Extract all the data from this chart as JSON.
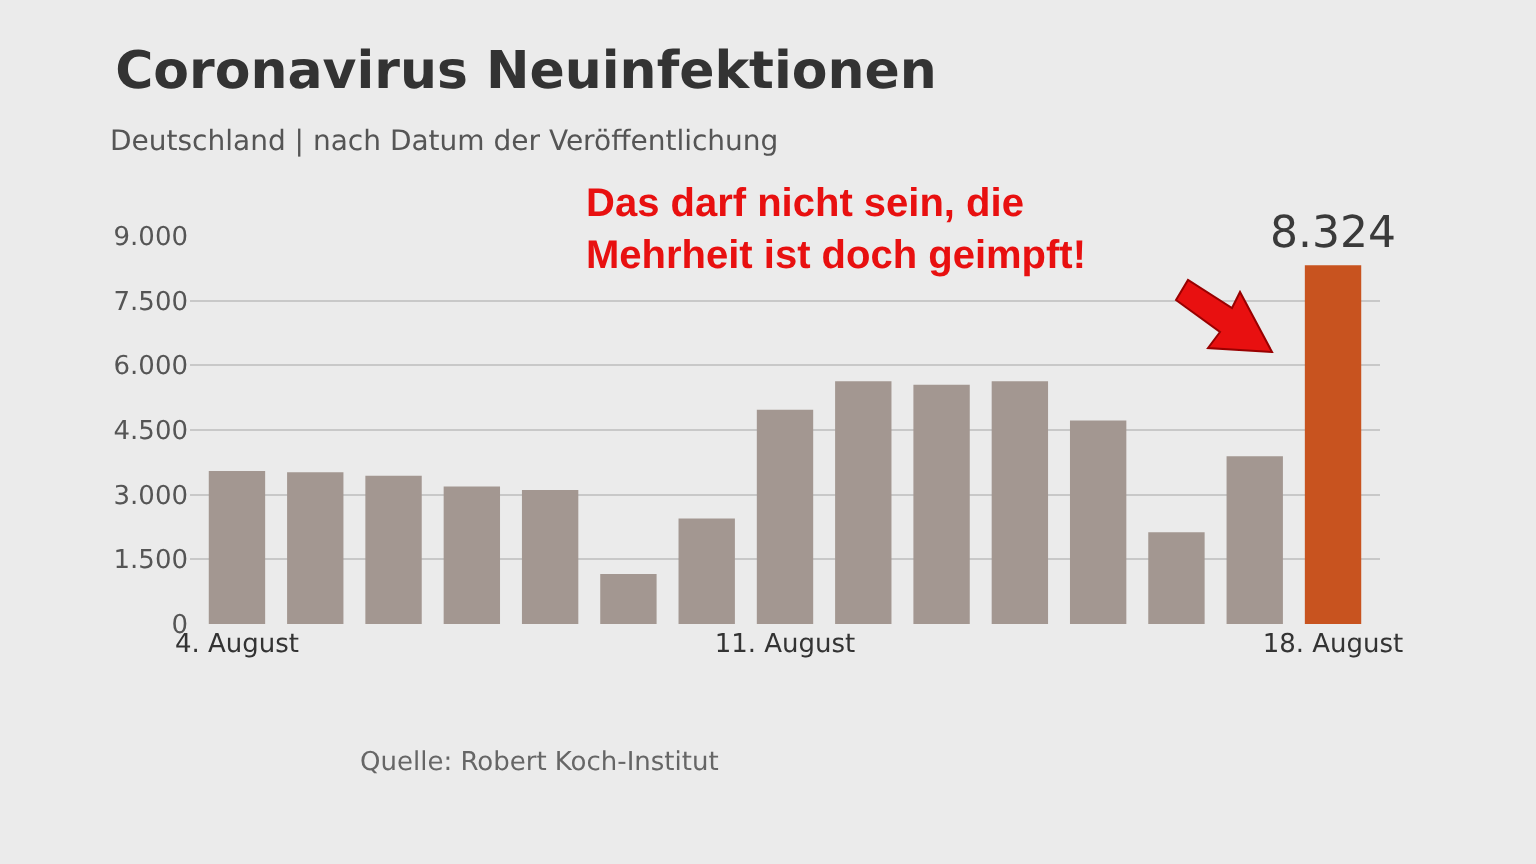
{
  "chart_data": {
    "type": "bar",
    "title": "Coronavirus Neuinfektionen",
    "subtitle": "Deutschland | nach Datum der Veröffentlichung",
    "categories": [
      "4. August",
      null,
      null,
      null,
      null,
      null,
      null,
      "11. August",
      null,
      null,
      null,
      null,
      null,
      null,
      "18. August"
    ],
    "values": [
      3550,
      3520,
      3440,
      3190,
      3110,
      1160,
      2450,
      4970,
      5630,
      5550,
      5630,
      4720,
      2130,
      3890,
      8324
    ],
    "colors": [
      "#a39791",
      "#a39791",
      "#a39791",
      "#a39791",
      "#a39791",
      "#a39791",
      "#a39791",
      "#a39791",
      "#a39791",
      "#a39791",
      "#a39791",
      "#a39791",
      "#a39791",
      "#a39791",
      "#c8531f"
    ],
    "value_labels": [
      null,
      null,
      null,
      null,
      null,
      null,
      null,
      null,
      null,
      null,
      null,
      null,
      null,
      null,
      "8.324"
    ],
    "ylim": [
      0,
      9000
    ],
    "yticks": [
      0,
      {
        "value": 1500,
        "label": "1.500"
      },
      {
        "value": 3000,
        "label": "3.000"
      },
      {
        "value": 4500,
        "label": "4.500"
      },
      {
        "value": 6000,
        "label": "6.000"
      },
      {
        "value": 7500,
        "label": "7.500"
      },
      {
        "value": 9000,
        "label": "9.000"
      }
    ],
    "grid": "y",
    "annotations": [
      "Das darf nicht sein, die\nMehrheit ist doch geimpft!",
      "Quelle: Robert Koch-Institut"
    ]
  }
}
